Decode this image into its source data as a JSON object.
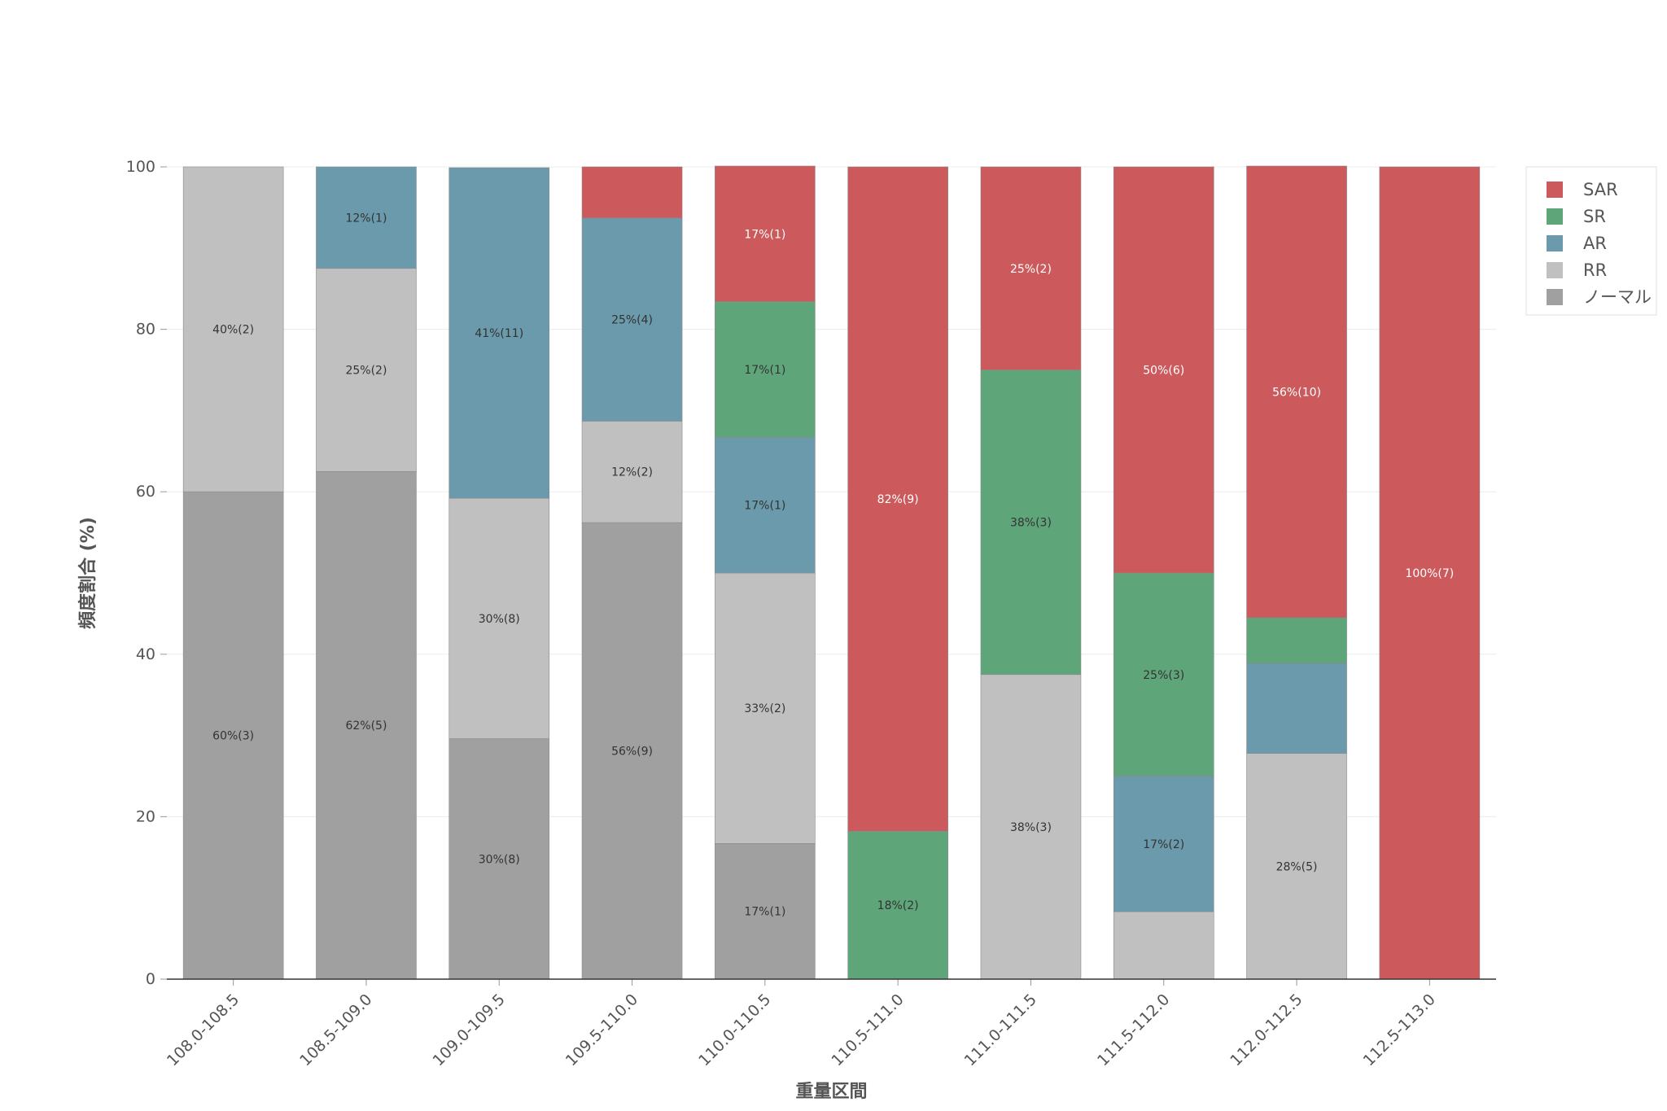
{
  "chart_data": {
    "type": "bar",
    "stacked": true,
    "xlabel": "重量区間",
    "ylabel": "頻度割合 (%)",
    "ylim": [
      0,
      100
    ],
    "yticks": [
      0,
      20,
      40,
      60,
      80,
      100
    ],
    "grid": true,
    "legend_position": "top-right",
    "categories": [
      "108.0-108.5",
      "108.5-109.0",
      "109.0-109.5",
      "109.5-110.0",
      "110.0-110.5",
      "110.5-111.0",
      "111.0-111.5",
      "111.5-112.0",
      "112.0-112.5",
      "112.5-113.0"
    ],
    "series": [
      {
        "name": "ノーマル",
        "color": "#a0a0a0",
        "values": [
          60,
          62.5,
          29.6,
          56.2,
          16.7,
          0,
          0,
          0,
          0,
          0
        ],
        "labels": [
          "60%(3)",
          "62%(5)",
          "30%(8)",
          "56%(9)",
          "17%(1)",
          "",
          "",
          "",
          "",
          ""
        ]
      },
      {
        "name": "RR",
        "color": "#c0c0c0",
        "values": [
          40,
          25,
          29.6,
          12.5,
          33.3,
          0,
          37.5,
          8.3,
          27.8,
          0
        ],
        "labels": [
          "40%(2)",
          "25%(2)",
          "30%(8)",
          "12%(2)",
          "33%(2)",
          "",
          "38%(3)",
          "",
          "28%(5)",
          ""
        ]
      },
      {
        "name": "AR",
        "color": "#6a9aab",
        "values": [
          0,
          12.5,
          40.7,
          25,
          16.7,
          0,
          0,
          16.7,
          11.1,
          0
        ],
        "labels": [
          "",
          "12%(1)",
          "41%(11)",
          "25%(4)",
          "17%(1)",
          "",
          "",
          "17%(2)",
          "",
          ""
        ]
      },
      {
        "name": "SR",
        "color": "#5fa57a",
        "values": [
          0,
          0,
          0,
          0,
          16.7,
          18.2,
          37.5,
          25,
          5.6,
          0
        ],
        "labels": [
          "",
          "",
          "",
          "",
          "17%(1)",
          "18%(2)",
          "38%(3)",
          "25%(3)",
          "",
          ""
        ]
      },
      {
        "name": "SAR",
        "color": "#cc5a5c",
        "values": [
          0,
          0,
          0,
          6.3,
          16.7,
          81.8,
          25,
          50,
          55.6,
          100
        ],
        "labels": [
          "",
          "",
          "",
          "",
          "17%(1)",
          "82%(9)",
          "25%(2)",
          "50%(6)",
          "56%(10)",
          "100%(7)"
        ]
      }
    ],
    "legend_order": [
      "SAR",
      "SR",
      "AR",
      "RR",
      "ノーマル"
    ]
  }
}
